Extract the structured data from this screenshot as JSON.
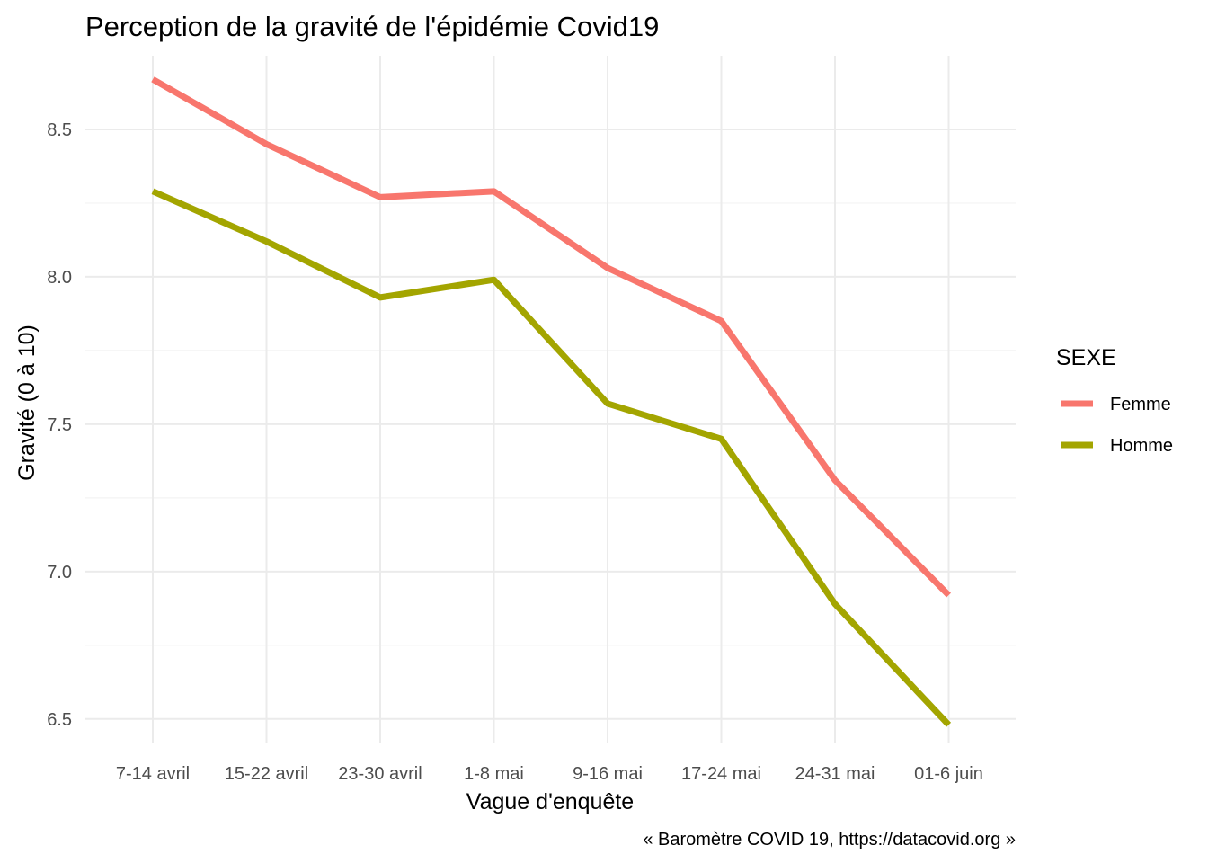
{
  "chart_data": {
    "type": "line",
    "title": "Perception de la gravité de l'épidémie Covid19",
    "xlabel": "Vague d'enquête",
    "ylabel": "Gravité (0 à 10)",
    "caption": "« Baromètre COVID 19, https://datacovid.org »",
    "categories": [
      "7-14 avril",
      "15-22 avril",
      "23-30 avril",
      "1-8 mai",
      "9-16 mai",
      "17-24 mai",
      "24-31 mai",
      "01-6 juin"
    ],
    "yticks": [
      6.5,
      7.0,
      7.5,
      8.0,
      8.5
    ],
    "yticks_labels": [
      "6.5",
      "7.0",
      "7.5",
      "8.0",
      "8.5"
    ],
    "ylim": [
      6.42,
      8.75
    ],
    "grid": true,
    "legend": {
      "title": "SEXE",
      "position": "right"
    },
    "series": [
      {
        "name": "Femme",
        "color": "#F8766D",
        "values": [
          8.67,
          8.45,
          8.27,
          8.29,
          8.03,
          7.85,
          7.31,
          6.92
        ]
      },
      {
        "name": "Homme",
        "color": "#A3A500",
        "values": [
          8.29,
          8.12,
          7.93,
          7.99,
          7.57,
          7.45,
          6.89,
          6.48
        ]
      }
    ]
  }
}
